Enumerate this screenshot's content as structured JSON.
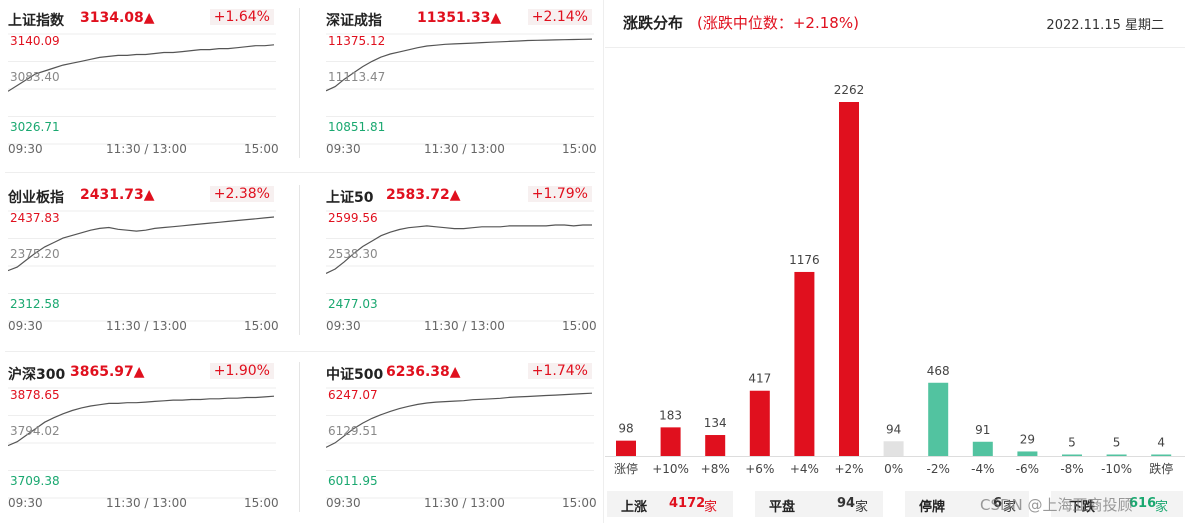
{
  "indices": [
    {
      "name": "上证指数",
      "value": "3134.08▲",
      "change": "+1.64%",
      "y_high": "3140.09",
      "y_mid": "3083.40",
      "y_low": "3026.71",
      "x_labels": [
        "09:30",
        "11:30 / 13:00",
        "15:00"
      ],
      "chart_data": {
        "type": "line",
        "ylim": [
          3026.71,
          3140.09
        ],
        "values": [
          3081,
          3087,
          3093,
          3099,
          3102,
          3105,
          3108,
          3110,
          3112,
          3114,
          3116,
          3117,
          3118,
          3118,
          3119,
          3119,
          3120,
          3121,
          3121,
          3122,
          3123,
          3124,
          3124,
          3125,
          3125,
          3126,
          3127,
          3128,
          3128,
          3129
        ]
      }
    },
    {
      "name": "深证成指",
      "value": "11351.33▲",
      "change": "+2.14%",
      "y_high": "11375.12",
      "y_mid": "11113.47",
      "y_low": "10851.81",
      "x_labels": [
        "09:30",
        "11:30 / 13:00",
        "15:00"
      ],
      "chart_data": {
        "type": "line",
        "ylim": [
          10851.81,
          11375.12
        ],
        "values": [
          11105,
          11125,
          11160,
          11190,
          11220,
          11245,
          11265,
          11280,
          11290,
          11300,
          11310,
          11318,
          11322,
          11326,
          11328,
          11330,
          11332,
          11334,
          11336,
          11338,
          11340,
          11342,
          11344,
          11345,
          11346,
          11347,
          11348,
          11349,
          11350,
          11351
        ]
      }
    },
    {
      "name": "创业板指",
      "value": "2431.73▲",
      "change": "+2.38%",
      "y_high": "2437.83",
      "y_mid": "2375.20",
      "y_low": "2312.58",
      "x_labels": [
        "09:30",
        "11:30 / 13:00",
        "15:00"
      ],
      "chart_data": {
        "type": "line",
        "ylim": [
          2312.58,
          2437.83
        ],
        "values": [
          2370,
          2374,
          2382,
          2390,
          2397,
          2402,
          2407,
          2410,
          2413,
          2416,
          2418,
          2419,
          2417,
          2416,
          2415,
          2416,
          2418,
          2419,
          2420,
          2421,
          2422,
          2423,
          2424,
          2425,
          2426,
          2427,
          2428,
          2429,
          2430,
          2431
        ]
      }
    },
    {
      "name": "上证50",
      "value": "2583.72▲",
      "change": "+1.79%",
      "y_high": "2599.56",
      "y_mid": "2538.30",
      "y_low": "2477.03",
      "x_labels": [
        "09:30",
        "11:30 / 13:00",
        "15:00"
      ],
      "chart_data": {
        "type": "line",
        "ylim": [
          2477.03,
          2599.56
        ],
        "values": [
          2530,
          2535,
          2543,
          2552,
          2560,
          2566,
          2572,
          2576,
          2579,
          2581,
          2582,
          2583,
          2582,
          2581,
          2580,
          2580,
          2581,
          2582,
          2582,
          2582,
          2583,
          2583,
          2583,
          2583,
          2583,
          2584,
          2584,
          2583,
          2584,
          2584
        ]
      }
    },
    {
      "name": "沪深300",
      "value": "3865.97▲",
      "change": "+1.90%",
      "y_high": "3878.65",
      "y_mid": "3794.02",
      "y_low": "3709.38",
      "x_labels": [
        "09:30",
        "11:30 / 13:00",
        "15:00"
      ],
      "chart_data": {
        "type": "line",
        "ylim": [
          3709.38,
          3878.65
        ],
        "values": [
          3790,
          3796,
          3806,
          3816,
          3826,
          3833,
          3839,
          3844,
          3848,
          3851,
          3853,
          3855,
          3855,
          3856,
          3856,
          3857,
          3858,
          3859,
          3860,
          3860,
          3861,
          3861,
          3862,
          3862,
          3863,
          3863,
          3864,
          3864,
          3865,
          3866
        ]
      }
    },
    {
      "name": "中证500",
      "value": "6236.38▲",
      "change": "+1.74%",
      "y_high": "6247.07",
      "y_mid": "6129.51",
      "y_low": "6011.95",
      "x_labels": [
        "09:30",
        "11:30 / 13:00",
        "15:00"
      ],
      "chart_data": {
        "type": "line",
        "ylim": [
          6011.95,
          6247.07
        ],
        "values": [
          6120,
          6130,
          6145,
          6160,
          6172,
          6182,
          6190,
          6197,
          6203,
          6208,
          6212,
          6215,
          6217,
          6218,
          6219,
          6220,
          6222,
          6223,
          6224,
          6225,
          6227,
          6228,
          6229,
          6230,
          6231,
          6232,
          6233,
          6234,
          6235,
          6236
        ]
      }
    }
  ],
  "distribution": {
    "title": "涨跌分布",
    "subtitle": "(涨跌中位数：+2.18%)",
    "date": "2022.11.15 星期二",
    "chart_data": {
      "type": "bar",
      "categories": [
        "涨停",
        "+10%",
        "+8%",
        "+6%",
        "+4%",
        "+2%",
        "0%",
        "-2%",
        "-4%",
        "-6%",
        "-8%",
        "-10%",
        "跌停"
      ],
      "values": [
        98,
        183,
        134,
        417,
        1176,
        2262,
        94,
        468,
        91,
        29,
        5,
        5,
        4
      ],
      "ylim": [
        0,
        2262
      ]
    },
    "colors": {
      "up": "#e0101e",
      "flat": "#e2e2e2",
      "down": "#52c3a0"
    }
  },
  "footer": [
    {
      "label": "上涨",
      "value": "4172",
      "unit": "家"
    },
    {
      "label": "平盘",
      "value": "94",
      "unit": "家"
    },
    {
      "label": "停牌",
      "value": "6",
      "unit": "家"
    },
    {
      "label": "下跌",
      "value": "616",
      "unit": "家"
    }
  ],
  "watermark": "CSDN @上海亚商投顾"
}
